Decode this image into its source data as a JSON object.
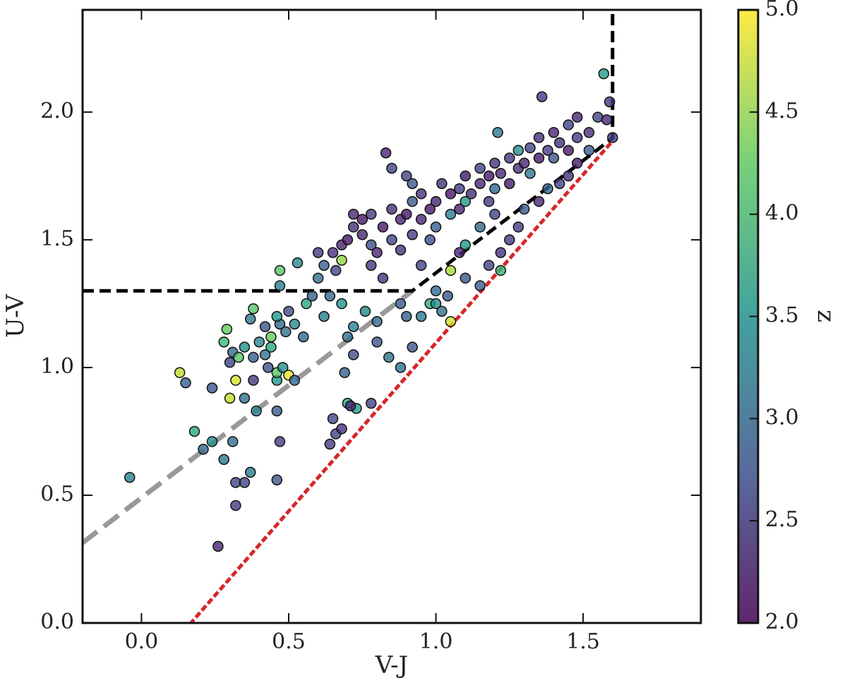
{
  "chart_data": {
    "type": "scatter",
    "xlabel": "V-J",
    "ylabel": "U-V",
    "colorbar_label": "z",
    "colormap": "viridis",
    "xlim": [
      -0.2,
      1.9
    ],
    "ylim": [
      0,
      2.4
    ],
    "clim": [
      2,
      5
    ],
    "xticks": [
      {
        "value": 0,
        "label": "0.0"
      },
      0.5,
      {
        "value": 1,
        "label": "1.0"
      },
      1.5
    ],
    "yticks": [
      {
        "value": 0,
        "label": "0.0"
      },
      0.5,
      {
        "value": 1,
        "label": "1.0"
      },
      1.5,
      {
        "value": 2,
        "label": "2.0"
      }
    ],
    "cticks": [
      {
        "value": 2,
        "label": "2.0"
      },
      2.5,
      {
        "value": 3,
        "label": "3.0"
      },
      3.5,
      {
        "value": 4,
        "label": "4.0"
      },
      4.5,
      {
        "value": 5,
        "label": "5.0"
      }
    ],
    "x": [
      -0.04,
      0.26,
      0.32,
      0.32,
      0.35,
      0.37,
      0.46,
      0.47,
      0.21,
      0.18,
      0.24,
      0.28,
      0.31,
      0.13,
      0.15,
      0.24,
      0.3,
      0.32,
      0.35,
      0.38,
      0.39,
      0.46,
      0.46,
      0.29,
      0.28,
      0.3,
      0.31,
      0.33,
      0.35,
      0.38,
      0.4,
      0.42,
      0.44,
      0.43,
      0.46,
      0.48,
      0.5,
      0.52,
      0.37,
      0.42,
      0.47,
      0.44,
      0.49,
      0.38,
      0.46,
      0.5,
      0.52,
      0.55,
      0.47,
      0.47,
      0.53,
      0.56,
      0.58,
      0.6,
      0.62,
      0.64,
      0.66,
      0.68,
      0.7,
      0.72,
      0.72,
      0.69,
      0.7,
      0.73,
      0.71,
      0.65,
      0.64,
      0.66,
      0.68,
      0.78,
      0.76,
      0.8,
      0.8,
      0.84,
      0.88,
      0.92,
      0.95,
      0.98,
      1.0,
      1.02,
      1.05,
      1.04,
      1.0,
      0.88,
      0.9,
      0.65,
      0.68,
      0.7,
      0.72,
      0.75,
      0.75,
      0.78,
      0.78,
      0.8,
      0.82,
      0.85,
      0.85,
      0.88,
      0.88,
      0.9,
      0.92,
      0.92,
      0.95,
      0.95,
      0.98,
      0.98,
      1.0,
      1.0,
      1.02,
      1.05,
      1.05,
      1.08,
      1.08,
      1.1,
      1.1,
      1.12,
      1.15,
      1.15,
      1.18,
      1.18,
      1.2,
      1.2,
      1.22,
      1.25,
      1.25,
      1.28,
      1.28,
      1.3,
      1.32,
      1.32,
      1.35,
      1.35,
      1.38,
      1.4,
      1.4,
      1.42,
      1.45,
      1.45,
      1.48,
      1.48,
      1.52,
      1.55,
      1.58,
      1.59,
      1.57,
      1.36,
      1.21,
      0.92,
      0.9,
      0.85,
      0.83,
      0.72,
      0.68,
      0.62,
      0.6,
      1.1,
      1.15,
      1.2,
      1.22,
      1.28,
      1.3,
      1.35,
      1.38,
      1.42,
      1.45,
      1.48,
      1.52,
      1.25,
      1.18,
      1.1,
      1.05,
      1.08,
      1.15,
      1.22,
      0.95,
      0.82,
      0.78,
      1.6
    ],
    "y": [
      0.57,
      0.3,
      0.46,
      0.55,
      0.55,
      0.59,
      0.56,
      0.71,
      0.68,
      0.75,
      0.71,
      0.64,
      0.71,
      0.98,
      0.94,
      0.92,
      0.88,
      0.95,
      0.88,
      0.95,
      0.83,
      0.83,
      0.95,
      1.15,
      1.1,
      1.02,
      1.06,
      1.04,
      1.08,
      1.04,
      1.1,
      1.05,
      1.08,
      1.0,
      0.98,
      1.0,
      0.97,
      0.95,
      1.19,
      1.16,
      1.17,
      1.12,
      1.14,
      1.23,
      1.2,
      1.22,
      1.17,
      1.12,
      1.32,
      1.38,
      1.41,
      1.25,
      1.28,
      1.35,
      1.2,
      1.28,
      1.38,
      1.25,
      1.12,
      1.16,
      1.05,
      0.98,
      0.86,
      0.84,
      0.85,
      0.8,
      0.7,
      0.74,
      0.76,
      0.86,
      1.22,
      1.18,
      1.1,
      1.04,
      1.0,
      1.08,
      1.2,
      1.25,
      1.25,
      1.22,
      1.18,
      1.28,
      1.3,
      1.25,
      1.2,
      1.45,
      1.48,
      1.5,
      1.55,
      1.52,
      1.58,
      1.6,
      1.48,
      1.45,
      1.55,
      1.62,
      1.5,
      1.58,
      1.46,
      1.6,
      1.52,
      1.65,
      1.58,
      1.68,
      1.62,
      1.5,
      1.65,
      1.55,
      1.72,
      1.68,
      1.6,
      1.7,
      1.62,
      1.75,
      1.65,
      1.68,
      1.72,
      1.78,
      1.75,
      1.65,
      1.8,
      1.7,
      1.76,
      1.82,
      1.72,
      1.78,
      1.85,
      1.8,
      1.86,
      1.76,
      1.82,
      1.9,
      1.85,
      1.92,
      1.82,
      1.88,
      1.95,
      1.85,
      1.98,
      1.9,
      1.92,
      1.98,
      1.97,
      2.04,
      2.15,
      2.06,
      1.92,
      1.72,
      1.75,
      1.78,
      1.84,
      1.6,
      1.42,
      1.4,
      1.45,
      1.48,
      1.55,
      1.6,
      1.45,
      1.55,
      1.62,
      1.65,
      1.7,
      1.72,
      1.75,
      1.8,
      1.85,
      1.5,
      1.4,
      1.35,
      1.38,
      1.45,
      1.32,
      1.38,
      1.4,
      1.35,
      1.4,
      1.9
    ],
    "z": [
      3.3,
      2.3,
      2.5,
      2.6,
      2.6,
      3.3,
      2.8,
      2.5,
      3.0,
      3.8,
      3.5,
      3.2,
      3.1,
      4.7,
      2.9,
      2.8,
      4.7,
      4.8,
      3.1,
      2.5,
      3.3,
      2.9,
      3.6,
      4.3,
      4.0,
      2.6,
      3.0,
      4.2,
      3.5,
      2.9,
      3.4,
      3.1,
      3.8,
      2.7,
      4.2,
      3.5,
      4.9,
      3.0,
      3.2,
      2.8,
      3.0,
      4.3,
      3.1,
      4.2,
      3.6,
      2.7,
      3.4,
      3.0,
      3.3,
      4.2,
      3.4,
      3.8,
      2.9,
      3.1,
      3.3,
      3.0,
      2.6,
      3.5,
      3.1,
      3.3,
      2.7,
      2.9,
      3.8,
      3.7,
      2.3,
      2.6,
      2.5,
      2.6,
      2.4,
      2.6,
      3.4,
      3.0,
      2.8,
      3.1,
      3.1,
      2.8,
      3.2,
      3.9,
      3.5,
      3.1,
      4.8,
      2.8,
      3.0,
      2.8,
      2.9,
      2.4,
      2.3,
      2.2,
      2.4,
      2.3,
      2.2,
      2.5,
      2.7,
      2.3,
      2.2,
      2.4,
      2.6,
      2.3,
      2.4,
      2.2,
      2.5,
      2.8,
      2.3,
      2.4,
      2.2,
      2.7,
      2.3,
      2.9,
      2.4,
      2.2,
      3.3,
      2.5,
      2.3,
      2.2,
      3.6,
      2.4,
      2.3,
      2.6,
      2.2,
      2.5,
      2.4,
      3.0,
      2.3,
      2.5,
      2.2,
      2.4,
      3.5,
      2.3,
      2.6,
      3.2,
      2.2,
      2.4,
      2.5,
      2.3,
      2.8,
      2.4,
      2.6,
      2.2,
      2.3,
      2.5,
      2.4,
      2.6,
      2.3,
      2.5,
      3.6,
      2.5,
      3.2,
      2.8,
      2.6,
      2.6,
      2.3,
      2.3,
      4.5,
      2.9,
      2.5,
      3.6,
      3.0,
      2.6,
      2.4,
      2.5,
      2.8,
      2.3,
      3.0,
      2.6,
      2.4,
      2.2,
      2.9,
      2.5,
      2.6,
      2.8,
      4.6,
      2.3,
      2.9,
      4.0,
      2.6,
      2.4,
      2.5,
      2.5
    ],
    "lines": [
      {
        "x": [
          -0.2,
          0.92
        ],
        "y": [
          0.314,
          1.3
        ],
        "color": "#999999",
        "style": "dashed-wide"
      },
      {
        "x": [
          -0.2,
          0.92,
          1.6,
          1.6
        ],
        "y": [
          1.3,
          1.3,
          1.898,
          2.4
        ],
        "color": "#000000",
        "style": "dashed"
      },
      {
        "x": [
          0.168,
          1.6
        ],
        "y": [
          0,
          1.887
        ],
        "color": "#d62728",
        "style": "dotted"
      }
    ]
  }
}
